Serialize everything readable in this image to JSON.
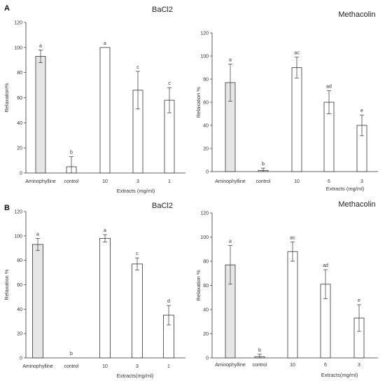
{
  "panel_labels": [
    "A",
    "B"
  ],
  "colors": {
    "bar_fill": "#ffffff",
    "highlight_fill": "#e6e6e6",
    "stroke": "#333333"
  },
  "chart_data": [
    {
      "type": "bar",
      "title": "BaCl2",
      "ylabel": "Relaxation%",
      "xlabel": "Extracts (mg/ml)",
      "ylim": [
        0,
        120
      ],
      "yticks": [
        "0",
        "20",
        "40",
        "60",
        "80",
        "100",
        "120"
      ],
      "grid": false,
      "categories": [
        "Aminophylline",
        "control",
        "10",
        "3",
        "1"
      ],
      "values": [
        93,
        5,
        100,
        66,
        58
      ],
      "errors": [
        5,
        8,
        0,
        15,
        10
      ],
      "letters": [
        "a",
        "b",
        "a",
        "c",
        "c"
      ],
      "highlight": [
        true,
        false,
        false,
        false,
        false
      ]
    },
    {
      "type": "bar",
      "title": "Methacolin",
      "ylabel": "Relaxation %",
      "xlabel": "Extracts (mg/ml)",
      "ylim": [
        0,
        120
      ],
      "yticks": [
        "0",
        "20",
        "40",
        "60",
        "80",
        "100",
        "120"
      ],
      "grid": false,
      "categories": [
        "Aminophylline",
        "control",
        "10",
        "6",
        "3"
      ],
      "values": [
        77,
        1,
        90,
        60,
        40
      ],
      "errors": [
        16,
        2,
        9,
        10,
        9
      ],
      "letters": [
        "a",
        "b",
        "ac",
        "ad",
        "e"
      ],
      "highlight": [
        true,
        false,
        false,
        false,
        false
      ]
    },
    {
      "type": "bar",
      "title": "BaCl2",
      "ylabel": "Relaxation %",
      "xlabel": "Extracts(mg/ml)",
      "ylim": [
        0,
        120
      ],
      "yticks": [
        "0",
        "20",
        "40",
        "60",
        "80",
        "100",
        "120"
      ],
      "grid": false,
      "categories": [
        "Aminophylline",
        "control",
        "10",
        "3",
        "1"
      ],
      "values": [
        93,
        0,
        98,
        77,
        35
      ],
      "errors": [
        5,
        0,
        3,
        5,
        8
      ],
      "letters": [
        "a",
        "b",
        "a",
        "c",
        "d"
      ],
      "highlight": [
        true,
        false,
        false,
        false,
        false
      ]
    },
    {
      "type": "bar",
      "title": "Methacolin",
      "ylabel": "Relaxation %",
      "xlabel": "Extracts(mg/ml)",
      "ylim": [
        0,
        120
      ],
      "yticks": [
        "0",
        "20",
        "40",
        "60",
        "80",
        "100",
        "120"
      ],
      "grid": false,
      "categories": [
        "Aminophylline",
        "control",
        "10",
        "6",
        "3"
      ],
      "values": [
        77,
        1,
        88,
        61,
        33
      ],
      "errors": [
        16,
        2,
        8,
        12,
        11
      ],
      "letters": [
        "a",
        "b",
        "ac",
        "ad",
        "e"
      ],
      "highlight": [
        true,
        false,
        false,
        false,
        false
      ]
    }
  ]
}
